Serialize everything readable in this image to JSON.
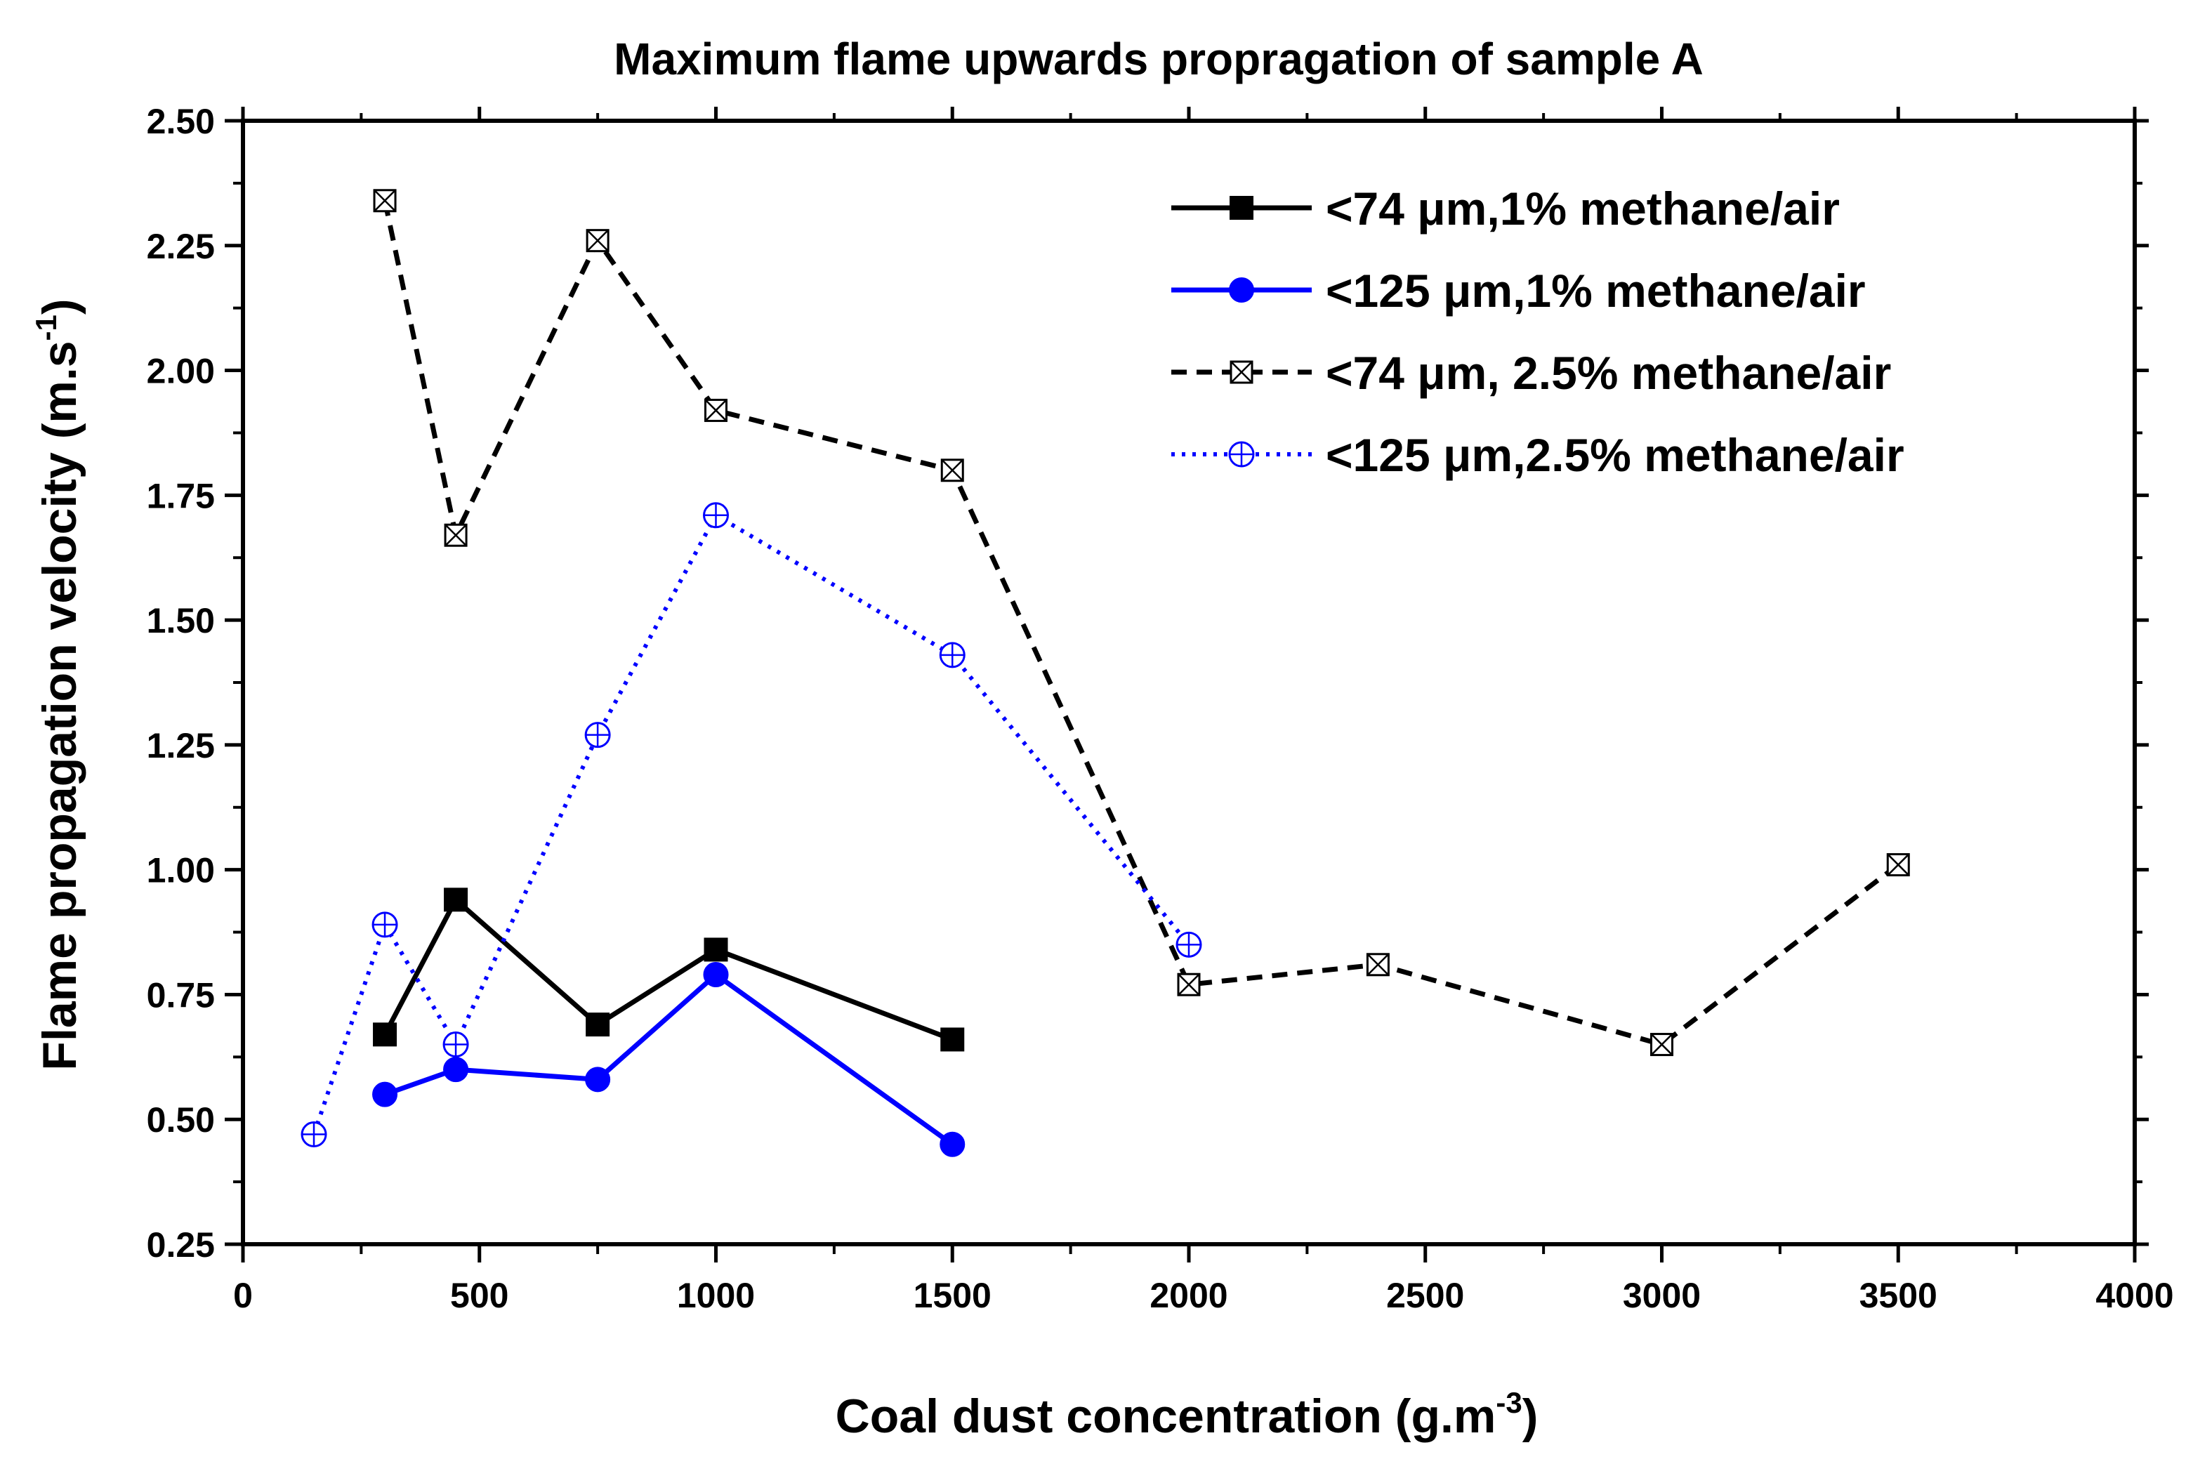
{
  "chart_data": {
    "type": "line",
    "title": "Maximum  flame upwards propragation of sample A",
    "xlabel": {
      "main": "Coal dust concentration (g.m",
      "sup": "-3",
      "close": ")"
    },
    "ylabel": {
      "main": "Flame propagation velocity  (m.s",
      "sup": "-1",
      "close": ")"
    },
    "xlim": [
      0,
      4000
    ],
    "ylim": [
      0.25,
      2.5
    ],
    "xticks": [
      0,
      500,
      1000,
      1500,
      2000,
      2500,
      3000,
      3500,
      4000
    ],
    "xtick_labels": [
      "0",
      "500",
      "1000",
      "1500",
      "2000",
      "2500",
      "3000",
      "3500",
      "4000"
    ],
    "yticks": [
      0.25,
      0.5,
      0.75,
      1.0,
      1.25,
      1.5,
      1.75,
      2.0,
      2.25,
      2.5
    ],
    "ytick_labels": [
      "0.25",
      "0.50",
      "0.75",
      "1.00",
      "1.25",
      "1.50",
      "1.75",
      "2.00",
      "2.25",
      "2.50"
    ],
    "legend_position": "top-right",
    "series": [
      {
        "name": "<74 μm,1% methane/air",
        "color": "#000000",
        "dash": "solid",
        "marker": "filled-square",
        "x": [
          300,
          450,
          750,
          1000,
          1500
        ],
        "y": [
          0.67,
          0.94,
          0.69,
          0.84,
          0.66
        ]
      },
      {
        "name": "<125 μm,1% methane/air",
        "color": "#0000ff",
        "dash": "solid",
        "marker": "filled-circle",
        "x": [
          300,
          450,
          750,
          1000,
          1500
        ],
        "y": [
          0.55,
          0.6,
          0.58,
          0.79,
          0.45
        ]
      },
      {
        "name": "<74 μm, 2.5% methane/air",
        "color": "#000000",
        "dash": "dashed",
        "marker": "crossed-square",
        "x": [
          300,
          450,
          750,
          1000,
          1500,
          2000,
          2400,
          3000,
          3500
        ],
        "y": [
          2.34,
          1.67,
          2.26,
          1.92,
          1.8,
          0.77,
          0.81,
          0.65,
          1.01
        ]
      },
      {
        "name": "<125 μm,2.5% methane/air",
        "color": "#0000ff",
        "dash": "dotted",
        "marker": "crossed-circle",
        "x": [
          150,
          300,
          450,
          750,
          1000,
          1500,
          2000
        ],
        "y": [
          0.47,
          0.89,
          0.65,
          1.27,
          1.71,
          1.43,
          0.85
        ]
      }
    ]
  }
}
